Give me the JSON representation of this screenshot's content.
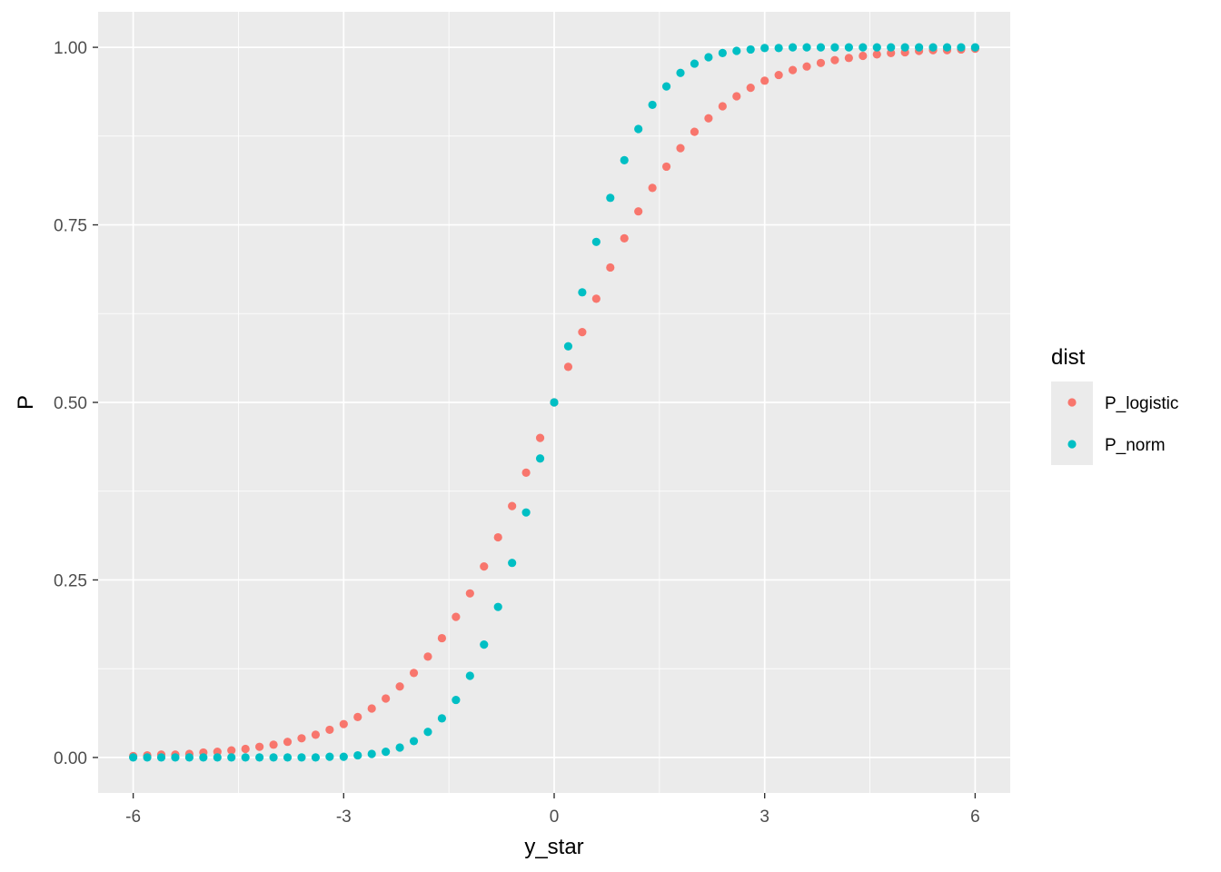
{
  "chart_data": {
    "type": "scatter",
    "xlabel": "y_star",
    "ylabel": "P",
    "xlim": [
      -6.5,
      6.5
    ],
    "ylim": [
      -0.05,
      1.05
    ],
    "x_ticks": [
      -6,
      -3,
      0,
      3,
      6
    ],
    "x_tick_labels": [
      "-6",
      "-3",
      "0",
      "3",
      "6"
    ],
    "y_ticks": [
      0,
      0.25,
      0.5,
      0.75,
      1.0
    ],
    "y_tick_labels": [
      "0.00",
      "0.25",
      "0.50",
      "0.75",
      "1.00"
    ],
    "grid": true,
    "panel_background": "#ebebeb",
    "legend": {
      "title": "dist",
      "position": "right",
      "entries": [
        "P_logistic",
        "P_norm"
      ]
    },
    "series": [
      {
        "name": "P_logistic",
        "color": "#f8766d",
        "x": [
          -6,
          -5.8,
          -5.6,
          -5.4,
          -5.2,
          -5,
          -4.8,
          -4.6,
          -4.4,
          -4.2,
          -4,
          -3.8,
          -3.6,
          -3.4,
          -3.2,
          -3,
          -2.8,
          -2.6,
          -2.4,
          -2.2,
          -2,
          -1.8,
          -1.6,
          -1.4,
          -1.2,
          -1,
          -0.8,
          -0.6,
          -0.4,
          -0.2,
          0,
          0.2,
          0.4,
          0.6,
          0.8,
          1,
          1.2,
          1.4,
          1.6,
          1.8,
          2,
          2.2,
          2.4,
          2.6,
          2.8,
          3,
          3.2,
          3.4,
          3.6,
          3.8,
          4,
          4.2,
          4.4,
          4.6,
          4.8,
          5,
          5.2,
          5.4,
          5.6,
          5.8,
          6
        ],
        "y": [
          0.002,
          0.003,
          0.004,
          0.004,
          0.005,
          0.007,
          0.008,
          0.01,
          0.012,
          0.015,
          0.018,
          0.022,
          0.027,
          0.032,
          0.039,
          0.047,
          0.057,
          0.069,
          0.083,
          0.1,
          0.119,
          0.142,
          0.168,
          0.198,
          0.231,
          0.269,
          0.31,
          0.354,
          0.401,
          0.45,
          0.5,
          0.55,
          0.599,
          0.646,
          0.69,
          0.731,
          0.769,
          0.802,
          0.832,
          0.858,
          0.881,
          0.9,
          0.917,
          0.931,
          0.943,
          0.953,
          0.961,
          0.968,
          0.973,
          0.978,
          0.982,
          0.985,
          0.988,
          0.99,
          0.992,
          0.993,
          0.995,
          0.996,
          0.996,
          0.997,
          0.998
        ]
      },
      {
        "name": "P_norm",
        "color": "#00bfc4",
        "x": [
          -6,
          -5.8,
          -5.6,
          -5.4,
          -5.2,
          -5,
          -4.8,
          -4.6,
          -4.4,
          -4.2,
          -4,
          -3.8,
          -3.6,
          -3.4,
          -3.2,
          -3,
          -2.8,
          -2.6,
          -2.4,
          -2.2,
          -2,
          -1.8,
          -1.6,
          -1.4,
          -1.2,
          -1,
          -0.8,
          -0.6,
          -0.4,
          -0.2,
          0,
          0.2,
          0.4,
          0.6,
          0.8,
          1,
          1.2,
          1.4,
          1.6,
          1.8,
          2,
          2.2,
          2.4,
          2.6,
          2.8,
          3,
          3.2,
          3.4,
          3.6,
          3.8,
          4,
          4.2,
          4.4,
          4.6,
          4.8,
          5,
          5.2,
          5.4,
          5.6,
          5.8,
          6
        ],
        "y": [
          0.0,
          0.0,
          0.0,
          0.0,
          0.0,
          0.0,
          0.0,
          0.0,
          0.0,
          0.0,
          0.0,
          0.0,
          0.0,
          0.0,
          0.001,
          0.001,
          0.003,
          0.005,
          0.008,
          0.014,
          0.023,
          0.036,
          0.055,
          0.081,
          0.115,
          0.159,
          0.212,
          0.274,
          0.345,
          0.421,
          0.5,
          0.579,
          0.655,
          0.726,
          0.788,
          0.841,
          0.885,
          0.919,
          0.945,
          0.964,
          0.977,
          0.986,
          0.992,
          0.995,
          0.997,
          0.999,
          0.999,
          1.0,
          1.0,
          1.0,
          1.0,
          1.0,
          1.0,
          1.0,
          1.0,
          1.0,
          1.0,
          1.0,
          1.0,
          1.0,
          1.0
        ]
      }
    ]
  }
}
